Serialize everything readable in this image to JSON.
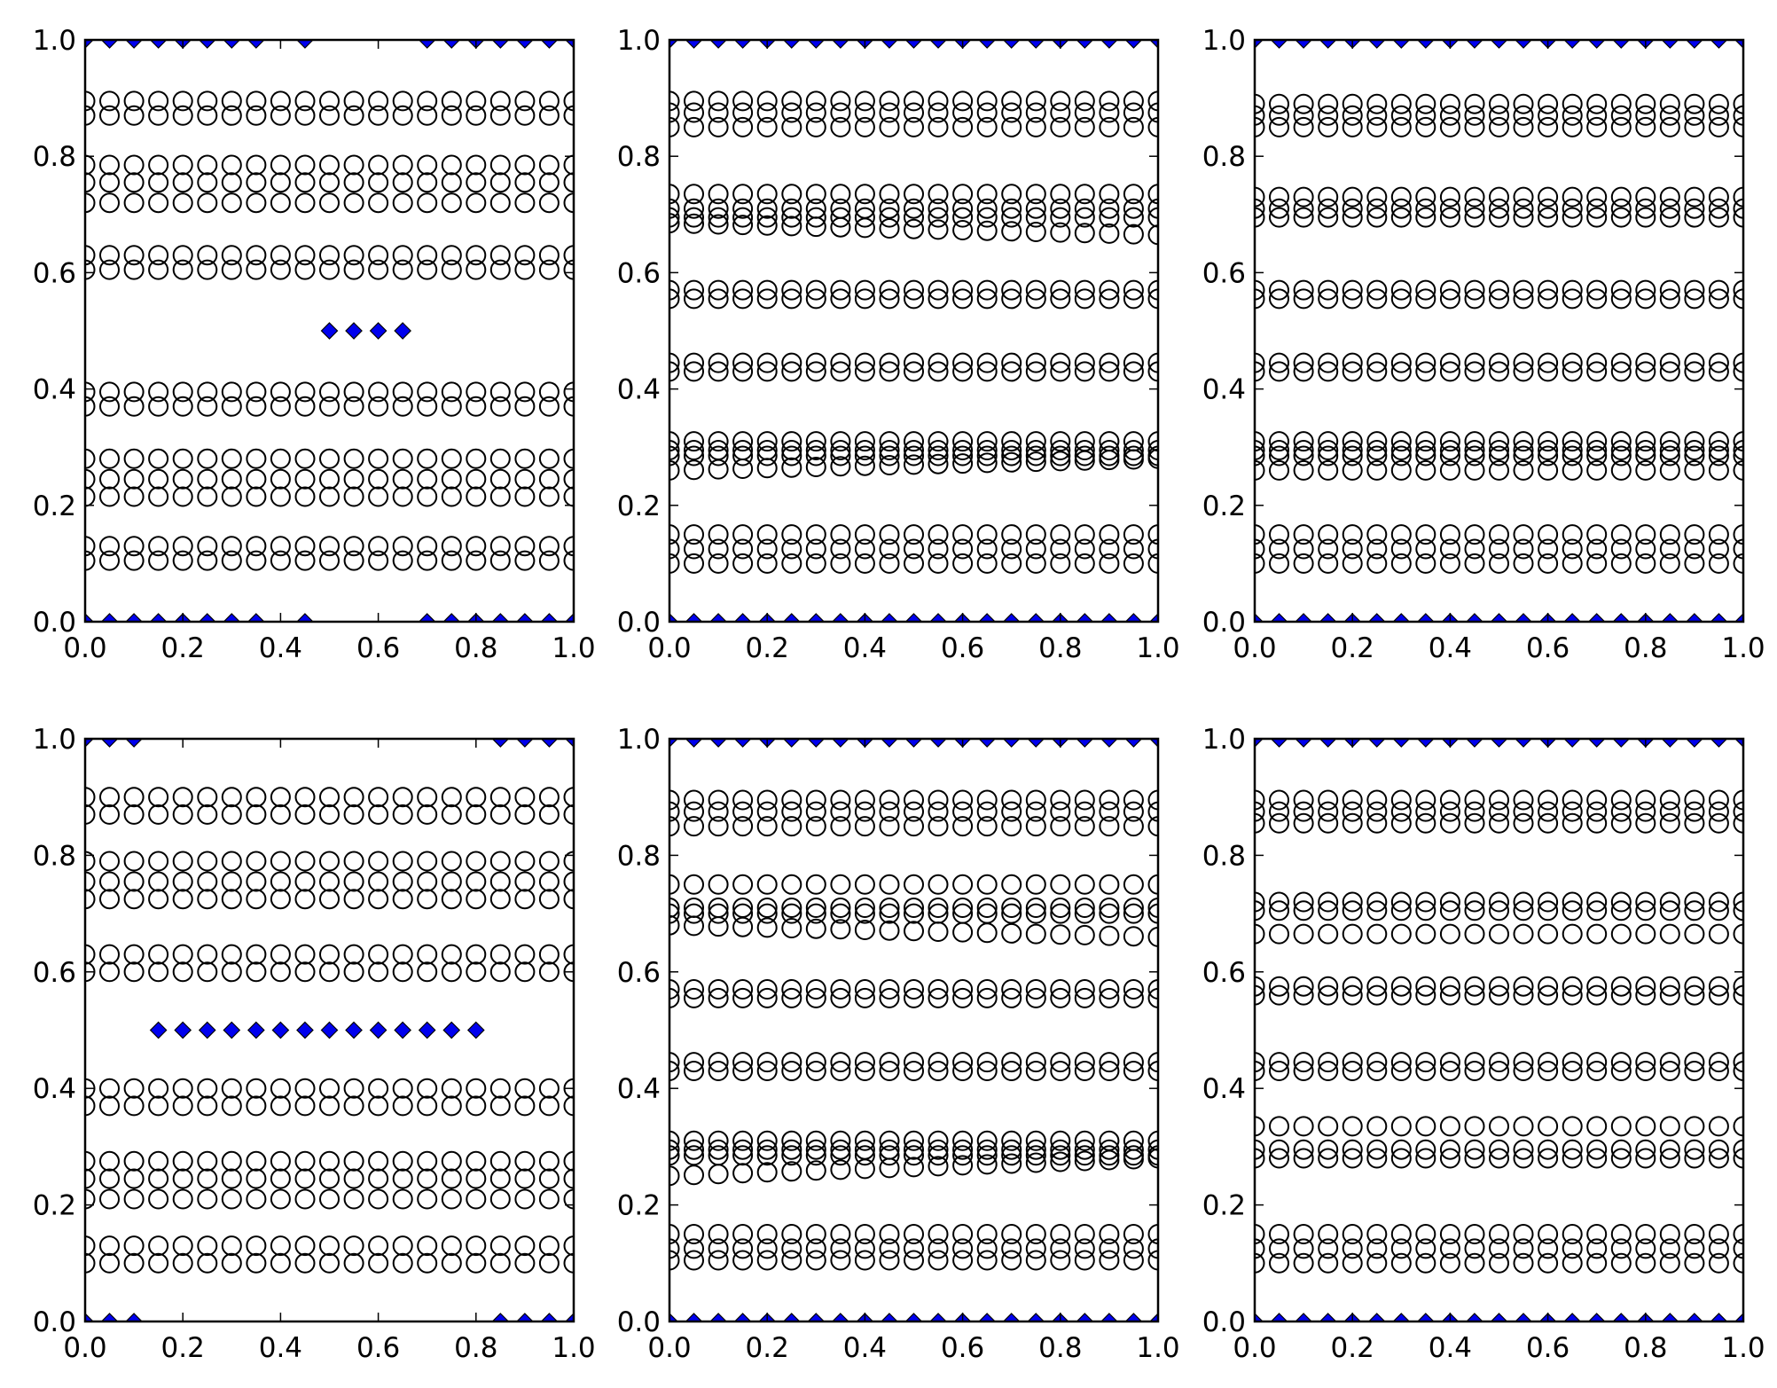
{
  "figure": {
    "layout": "2 rows x 3 columns",
    "marker_style": {
      "circle": "hollow black",
      "diamond": "filled"
    }
  },
  "colors": {
    "background": "#ffffff",
    "axes": "#000000",
    "circle_edge": "#000000",
    "diamond_fill": "#0000ee",
    "diamond_edge": "#000000"
  },
  "chart_data": [
    {
      "type": "scatter",
      "title": "",
      "xlabel": "",
      "ylabel": "",
      "xlim": [
        0,
        1
      ],
      "ylim": [
        0,
        1
      ],
      "grid": false,
      "x_ticks": [
        "0.0",
        "0.2",
        "0.4",
        "0.6",
        "0.8",
        "1.0"
      ],
      "y_ticks": [
        "0.0",
        "0.2",
        "0.4",
        "0.6",
        "0.8",
        "1.0"
      ],
      "circle_x": [
        0.0,
        0.05,
        0.1,
        0.15,
        0.2,
        0.25,
        0.3,
        0.35,
        0.4,
        0.45,
        0.5,
        0.55,
        0.6,
        0.65,
        0.7,
        0.75,
        0.8,
        0.85,
        0.9,
        0.95,
        1.0
      ],
      "circle_rows": [
        {
          "y": 0.895,
          "slope": 0.0
        },
        {
          "y": 0.87,
          "slope": 0.0
        },
        {
          "y": 0.785,
          "slope": 0.0
        },
        {
          "y": 0.755,
          "slope": 0.0
        },
        {
          "y": 0.72,
          "slope": 0.0
        },
        {
          "y": 0.63,
          "slope": 0.0
        },
        {
          "y": 0.605,
          "slope": 0.0
        },
        {
          "y": 0.395,
          "slope": 0.0
        },
        {
          "y": 0.37,
          "slope": 0.0
        },
        {
          "y": 0.28,
          "slope": 0.0
        },
        {
          "y": 0.245,
          "slope": 0.0
        },
        {
          "y": 0.215,
          "slope": 0.0
        },
        {
          "y": 0.13,
          "slope": 0.0
        },
        {
          "y": 0.105,
          "slope": 0.0
        }
      ],
      "diamonds": {
        "mid": {
          "y": 0.5,
          "x": [
            0.5,
            0.55,
            0.6,
            0.65
          ]
        },
        "top": {
          "y": 1.0,
          "x": [
            0.0,
            0.05,
            0.1,
            0.15,
            0.2,
            0.25,
            0.3,
            0.35,
            0.45,
            0.7,
            0.75,
            0.8,
            0.85,
            0.9,
            0.95,
            1.0
          ]
        },
        "bottom": {
          "y": 0.0,
          "x": [
            0.0,
            0.05,
            0.1,
            0.15,
            0.2,
            0.25,
            0.3,
            0.35,
            0.45,
            0.7,
            0.75,
            0.8,
            0.85,
            0.9,
            0.95,
            1.0
          ]
        }
      }
    },
    {
      "type": "scatter",
      "title": "",
      "xlabel": "",
      "ylabel": "",
      "xlim": [
        0,
        1
      ],
      "ylim": [
        0,
        1
      ],
      "grid": false,
      "x_ticks": [
        "0.0",
        "0.2",
        "0.4",
        "0.6",
        "0.8",
        "1.0"
      ],
      "y_ticks": [
        "0.0",
        "0.2",
        "0.4",
        "0.6",
        "0.8",
        "1.0"
      ],
      "circle_x": [
        0.0,
        0.05,
        0.1,
        0.15,
        0.2,
        0.25,
        0.3,
        0.35,
        0.4,
        0.45,
        0.5,
        0.55,
        0.6,
        0.65,
        0.7,
        0.75,
        0.8,
        0.85,
        0.9,
        0.95,
        1.0
      ],
      "circle_rows": [
        {
          "y": 0.895,
          "slope": 0.0
        },
        {
          "y": 0.875,
          "slope": 0.0
        },
        {
          "y": 0.85,
          "slope": 0.0
        },
        {
          "y": 0.735,
          "slope": 0.0
        },
        {
          "y": 0.71,
          "slope": 0.0
        },
        {
          "y": 0.695,
          "slope": 0.0
        },
        {
          "y": 0.685,
          "slope": -0.02
        },
        {
          "y": 0.57,
          "slope": 0.0
        },
        {
          "y": 0.555,
          "slope": 0.0
        },
        {
          "y": 0.445,
          "slope": 0.0
        },
        {
          "y": 0.43,
          "slope": 0.0
        },
        {
          "y": 0.31,
          "slope": 0.0
        },
        {
          "y": 0.295,
          "slope": 0.0
        },
        {
          "y": 0.285,
          "slope": 0.0
        },
        {
          "y": 0.26,
          "slope": 0.02
        },
        {
          "y": 0.15,
          "slope": 0.0
        },
        {
          "y": 0.125,
          "slope": 0.0
        },
        {
          "y": 0.1,
          "slope": 0.0
        }
      ],
      "diamonds": {
        "top": {
          "y": 1.0,
          "x": [
            0.0,
            0.05,
            0.1,
            0.15,
            0.2,
            0.25,
            0.3,
            0.35,
            0.4,
            0.45,
            0.5,
            0.55,
            0.6,
            0.65,
            0.7,
            0.75,
            0.8,
            0.85,
            0.9,
            0.95,
            1.0
          ]
        },
        "bottom": {
          "y": 0.0,
          "x": [
            0.0,
            0.05,
            0.1,
            0.15,
            0.2,
            0.25,
            0.3,
            0.35,
            0.4,
            0.45,
            0.5,
            0.55,
            0.6,
            0.65,
            0.7,
            0.75,
            0.8,
            0.85,
            0.9,
            0.95,
            1.0
          ]
        }
      }
    },
    {
      "type": "scatter",
      "title": "",
      "xlabel": "",
      "ylabel": "",
      "xlim": [
        0,
        1
      ],
      "ylim": [
        0,
        1
      ],
      "grid": false,
      "x_ticks": [
        "0.0",
        "0.2",
        "0.4",
        "0.6",
        "0.8",
        "1.0"
      ],
      "y_ticks": [
        "0.0",
        "0.2",
        "0.4",
        "0.6",
        "0.8",
        "1.0"
      ],
      "circle_x": [
        0.0,
        0.05,
        0.1,
        0.15,
        0.2,
        0.25,
        0.3,
        0.35,
        0.4,
        0.45,
        0.5,
        0.55,
        0.6,
        0.65,
        0.7,
        0.75,
        0.8,
        0.85,
        0.9,
        0.95,
        1.0
      ],
      "circle_rows": [
        {
          "y": 0.89,
          "slope": 0.0
        },
        {
          "y": 0.87,
          "slope": 0.0
        },
        {
          "y": 0.85,
          "slope": 0.0
        },
        {
          "y": 0.73,
          "slope": 0.0
        },
        {
          "y": 0.71,
          "slope": 0.0
        },
        {
          "y": 0.695,
          "slope": 0.0
        },
        {
          "y": 0.57,
          "slope": 0.0
        },
        {
          "y": 0.555,
          "slope": 0.0
        },
        {
          "y": 0.445,
          "slope": 0.0
        },
        {
          "y": 0.43,
          "slope": 0.0
        },
        {
          "y": 0.31,
          "slope": 0.0
        },
        {
          "y": 0.295,
          "slope": 0.0
        },
        {
          "y": 0.285,
          "slope": 0.0
        },
        {
          "y": 0.26,
          "slope": 0.0
        },
        {
          "y": 0.15,
          "slope": 0.0
        },
        {
          "y": 0.125,
          "slope": 0.0
        },
        {
          "y": 0.1,
          "slope": 0.0
        }
      ],
      "diamonds": {
        "top": {
          "y": 1.0,
          "x": [
            0.0,
            0.05,
            0.1,
            0.15,
            0.2,
            0.25,
            0.3,
            0.35,
            0.4,
            0.45,
            0.5,
            0.55,
            0.6,
            0.65,
            0.7,
            0.75,
            0.8,
            0.85,
            0.9,
            0.95,
            1.0
          ]
        },
        "bottom": {
          "y": 0.0,
          "x": [
            0.0,
            0.05,
            0.1,
            0.15,
            0.2,
            0.25,
            0.3,
            0.35,
            0.4,
            0.45,
            0.5,
            0.55,
            0.6,
            0.65,
            0.7,
            0.75,
            0.8,
            0.85,
            0.9,
            0.95,
            1.0
          ]
        }
      }
    },
    {
      "type": "scatter",
      "title": "",
      "xlabel": "",
      "ylabel": "",
      "xlim": [
        0,
        1
      ],
      "ylim": [
        0,
        1
      ],
      "grid": false,
      "x_ticks": [
        "0.0",
        "0.2",
        "0.4",
        "0.6",
        "0.8",
        "1.0"
      ],
      "y_ticks": [
        "0.0",
        "0.2",
        "0.4",
        "0.6",
        "0.8",
        "1.0"
      ],
      "circle_x": [
        0.0,
        0.05,
        0.1,
        0.15,
        0.2,
        0.25,
        0.3,
        0.35,
        0.4,
        0.45,
        0.5,
        0.55,
        0.6,
        0.65,
        0.7,
        0.75,
        0.8,
        0.85,
        0.9,
        0.95,
        1.0
      ],
      "circle_rows": [
        {
          "y": 0.9,
          "slope": 0.0
        },
        {
          "y": 0.87,
          "slope": 0.0
        },
        {
          "y": 0.79,
          "slope": 0.0
        },
        {
          "y": 0.755,
          "slope": 0.0
        },
        {
          "y": 0.725,
          "slope": 0.0
        },
        {
          "y": 0.63,
          "slope": 0.0
        },
        {
          "y": 0.6,
          "slope": 0.0
        },
        {
          "y": 0.4,
          "slope": 0.0
        },
        {
          "y": 0.37,
          "slope": 0.0
        },
        {
          "y": 0.275,
          "slope": 0.0
        },
        {
          "y": 0.245,
          "slope": 0.0
        },
        {
          "y": 0.21,
          "slope": 0.0
        },
        {
          "y": 0.13,
          "slope": 0.0
        },
        {
          "y": 0.1,
          "slope": 0.0
        }
      ],
      "diamonds": {
        "mid": {
          "y": 0.5,
          "x": [
            0.15,
            0.2,
            0.25,
            0.3,
            0.35,
            0.4,
            0.45,
            0.5,
            0.55,
            0.6,
            0.65,
            0.7,
            0.75,
            0.8
          ]
        },
        "top": {
          "y": 1.0,
          "x": [
            0.0,
            0.05,
            0.1,
            0.85,
            0.9,
            0.95,
            1.0
          ]
        },
        "bottom": {
          "y": 0.0,
          "x": [
            0.0,
            0.05,
            0.1,
            0.85,
            0.9,
            0.95,
            1.0
          ]
        }
      }
    },
    {
      "type": "scatter",
      "title": "",
      "xlabel": "",
      "ylabel": "",
      "xlim": [
        0,
        1
      ],
      "ylim": [
        0,
        1
      ],
      "grid": false,
      "x_ticks": [
        "0.0",
        "0.2",
        "0.4",
        "0.6",
        "0.8",
        "1.0"
      ],
      "y_ticks": [
        "0.0",
        "0.2",
        "0.4",
        "0.6",
        "0.8",
        "1.0"
      ],
      "circle_x": [
        0.0,
        0.05,
        0.1,
        0.15,
        0.2,
        0.25,
        0.3,
        0.35,
        0.4,
        0.45,
        0.5,
        0.55,
        0.6,
        0.65,
        0.7,
        0.75,
        0.8,
        0.85,
        0.9,
        0.95,
        1.0
      ],
      "circle_rows": [
        {
          "y": 0.895,
          "slope": 0.0
        },
        {
          "y": 0.875,
          "slope": 0.0
        },
        {
          "y": 0.85,
          "slope": 0.0
        },
        {
          "y": 0.75,
          "slope": 0.0
        },
        {
          "y": 0.71,
          "slope": 0.0
        },
        {
          "y": 0.7,
          "slope": 0.0
        },
        {
          "y": 0.68,
          "slope": -0.02
        },
        {
          "y": 0.57,
          "slope": 0.0
        },
        {
          "y": 0.555,
          "slope": 0.0
        },
        {
          "y": 0.445,
          "slope": 0.0
        },
        {
          "y": 0.43,
          "slope": 0.0
        },
        {
          "y": 0.31,
          "slope": 0.0
        },
        {
          "y": 0.295,
          "slope": 0.0
        },
        {
          "y": 0.285,
          "slope": 0.0
        },
        {
          "y": 0.25,
          "slope": 0.03
        },
        {
          "y": 0.15,
          "slope": 0.0
        },
        {
          "y": 0.125,
          "slope": 0.0
        },
        {
          "y": 0.105,
          "slope": 0.0
        }
      ],
      "diamonds": {
        "top": {
          "y": 1.0,
          "x": [
            0.0,
            0.05,
            0.1,
            0.15,
            0.2,
            0.25,
            0.3,
            0.35,
            0.4,
            0.45,
            0.5,
            0.55,
            0.6,
            0.65,
            0.7,
            0.75,
            0.8,
            0.85,
            0.9,
            0.95,
            1.0
          ]
        },
        "bottom": {
          "y": 0.0,
          "x": [
            0.0,
            0.05,
            0.1,
            0.15,
            0.2,
            0.25,
            0.3,
            0.35,
            0.4,
            0.45,
            0.5,
            0.55,
            0.6,
            0.65,
            0.7,
            0.75,
            0.8,
            0.85,
            0.9,
            0.95,
            1.0
          ]
        }
      }
    },
    {
      "type": "scatter",
      "title": "",
      "xlabel": "",
      "ylabel": "",
      "xlim": [
        0,
        1
      ],
      "ylim": [
        0,
        1
      ],
      "grid": false,
      "x_ticks": [
        "0.0",
        "0.2",
        "0.4",
        "0.6",
        "0.8",
        "1.0"
      ],
      "y_ticks": [
        "0.0",
        "0.2",
        "0.4",
        "0.6",
        "0.8",
        "1.0"
      ],
      "circle_x": [
        0.0,
        0.05,
        0.1,
        0.15,
        0.2,
        0.25,
        0.3,
        0.35,
        0.4,
        0.45,
        0.5,
        0.55,
        0.6,
        0.65,
        0.7,
        0.75,
        0.8,
        0.85,
        0.9,
        0.95,
        1.0
      ],
      "circle_rows": [
        {
          "y": 0.895,
          "slope": 0.0
        },
        {
          "y": 0.875,
          "slope": 0.0
        },
        {
          "y": 0.855,
          "slope": 0.0
        },
        {
          "y": 0.72,
          "slope": 0.0
        },
        {
          "y": 0.705,
          "slope": 0.0
        },
        {
          "y": 0.665,
          "slope": 0.0
        },
        {
          "y": 0.575,
          "slope": 0.0
        },
        {
          "y": 0.56,
          "slope": 0.0
        },
        {
          "y": 0.445,
          "slope": 0.0
        },
        {
          "y": 0.43,
          "slope": 0.0
        },
        {
          "y": 0.335,
          "slope": 0.0
        },
        {
          "y": 0.295,
          "slope": 0.0
        },
        {
          "y": 0.28,
          "slope": 0.0
        },
        {
          "y": 0.15,
          "slope": 0.0
        },
        {
          "y": 0.125,
          "slope": 0.0
        },
        {
          "y": 0.1,
          "slope": 0.0
        }
      ],
      "diamonds": {
        "top": {
          "y": 1.0,
          "x": [
            0.0,
            0.05,
            0.1,
            0.15,
            0.2,
            0.25,
            0.3,
            0.35,
            0.4,
            0.45,
            0.5,
            0.55,
            0.6,
            0.65,
            0.7,
            0.75,
            0.8,
            0.85,
            0.9,
            0.95,
            1.0
          ]
        },
        "bottom": {
          "y": 0.0,
          "x": [
            0.0,
            0.05,
            0.1,
            0.15,
            0.2,
            0.25,
            0.3,
            0.35,
            0.4,
            0.45,
            0.5,
            0.55,
            0.6,
            0.65,
            0.7,
            0.75,
            0.8,
            0.85,
            0.9,
            0.95,
            1.0
          ]
        }
      }
    }
  ]
}
